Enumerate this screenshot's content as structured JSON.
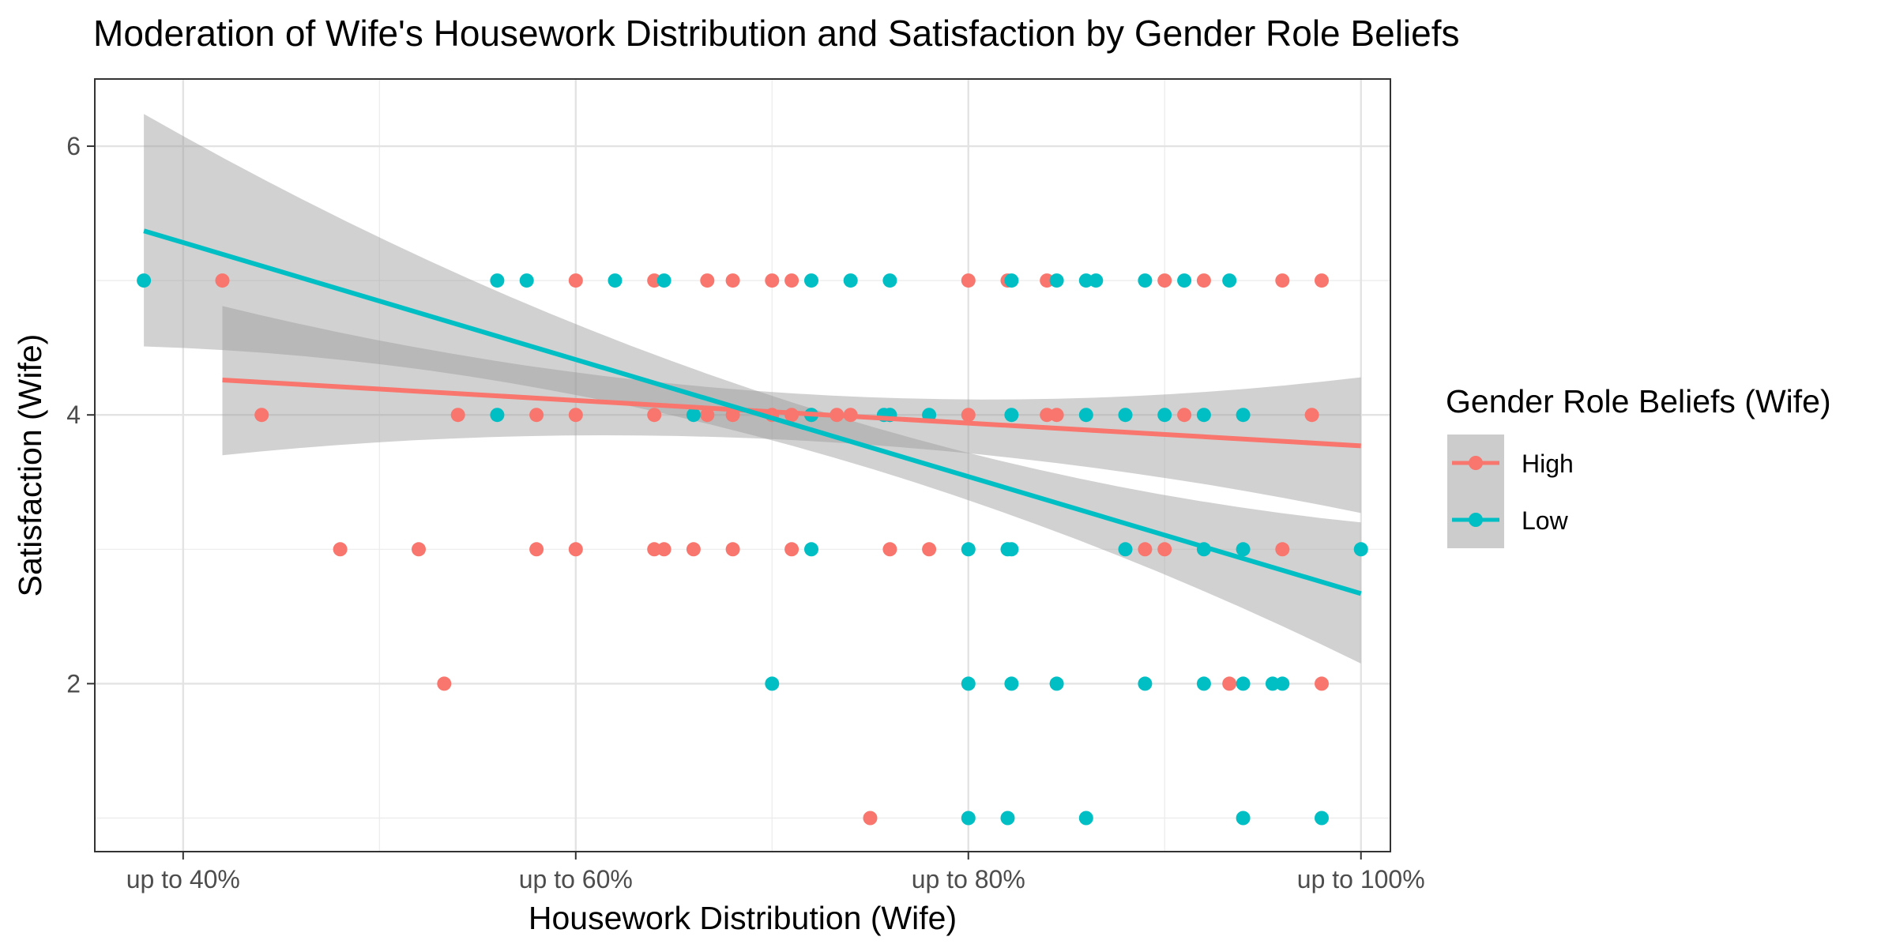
{
  "chart_data": {
    "type": "scatter",
    "title": "Moderation of Wife's Housework Distribution and Satisfaction by Gender Role Beliefs",
    "xlabel": "Housework Distribution (Wife)",
    "ylabel": "Satisfaction (Wife)",
    "xlim": [
      0.355,
      1.015
    ],
    "ylim": [
      0.75,
      6.5
    ],
    "x_ticks": [
      {
        "value": 0.4,
        "label": "up to 40%"
      },
      {
        "value": 0.6,
        "label": "up to 60%"
      },
      {
        "value": 0.8,
        "label": "up to 80%"
      },
      {
        "value": 1.0,
        "label": "up to 100%"
      }
    ],
    "y_ticks": [
      {
        "value": 2,
        "label": "2"
      },
      {
        "value": 4,
        "label": "4"
      },
      {
        "value": 6,
        "label": "6"
      }
    ],
    "grid": true,
    "legend": {
      "title": "Gender Role Beliefs (Wife)",
      "position": "right"
    },
    "series": [
      {
        "name": "High",
        "color": "#F8766D",
        "points": [
          [
            0.42,
            5
          ],
          [
            0.6,
            5
          ],
          [
            0.64,
            5
          ],
          [
            0.667,
            5
          ],
          [
            0.68,
            5
          ],
          [
            0.7,
            5
          ],
          [
            0.71,
            5
          ],
          [
            0.8,
            5
          ],
          [
            0.82,
            5
          ],
          [
            0.84,
            5
          ],
          [
            0.9,
            5
          ],
          [
            0.92,
            5
          ],
          [
            0.96,
            5
          ],
          [
            0.98,
            5
          ],
          [
            0.44,
            4
          ],
          [
            0.54,
            4
          ],
          [
            0.58,
            4
          ],
          [
            0.6,
            4
          ],
          [
            0.64,
            4
          ],
          [
            0.667,
            4
          ],
          [
            0.68,
            4
          ],
          [
            0.7,
            4
          ],
          [
            0.71,
            4
          ],
          [
            0.72,
            4
          ],
          [
            0.733,
            4
          ],
          [
            0.74,
            4
          ],
          [
            0.76,
            4
          ],
          [
            0.8,
            4
          ],
          [
            0.84,
            4
          ],
          [
            0.845,
            4
          ],
          [
            0.91,
            4
          ],
          [
            0.975,
            4
          ],
          [
            0.48,
            3
          ],
          [
            0.52,
            3
          ],
          [
            0.58,
            3
          ],
          [
            0.6,
            3
          ],
          [
            0.64,
            3
          ],
          [
            0.645,
            3
          ],
          [
            0.66,
            3
          ],
          [
            0.68,
            3
          ],
          [
            0.71,
            3
          ],
          [
            0.76,
            3
          ],
          [
            0.78,
            3
          ],
          [
            0.89,
            3
          ],
          [
            0.9,
            3
          ],
          [
            0.96,
            3
          ],
          [
            0.533,
            2
          ],
          [
            0.933,
            2
          ],
          [
            0.98,
            2
          ],
          [
            0.75,
            1
          ]
        ],
        "fit": {
          "x": [
            0.42,
            1.0
          ],
          "y": [
            4.26,
            3.77
          ],
          "ci_low": [
            3.7,
            3.27
          ],
          "ci_high": [
            4.81,
            4.28
          ],
          "ci_x_mid": 0.7,
          "ci_mid": [
            3.82,
            4.17
          ]
        }
      },
      {
        "name": "Low",
        "color": "#00BFC4",
        "points": [
          [
            0.38,
            5
          ],
          [
            0.56,
            5
          ],
          [
            0.575,
            5
          ],
          [
            0.62,
            5
          ],
          [
            0.645,
            5
          ],
          [
            0.72,
            5
          ],
          [
            0.74,
            5
          ],
          [
            0.76,
            5
          ],
          [
            0.822,
            5
          ],
          [
            0.845,
            5
          ],
          [
            0.86,
            5
          ],
          [
            0.865,
            5
          ],
          [
            0.89,
            5
          ],
          [
            0.91,
            5
          ],
          [
            0.933,
            5
          ],
          [
            0.56,
            4
          ],
          [
            0.66,
            4
          ],
          [
            0.72,
            4
          ],
          [
            0.757,
            4
          ],
          [
            0.76,
            4
          ],
          [
            0.78,
            4
          ],
          [
            0.822,
            4
          ],
          [
            0.86,
            4
          ],
          [
            0.88,
            4
          ],
          [
            0.9,
            4
          ],
          [
            0.92,
            4
          ],
          [
            0.94,
            4
          ],
          [
            0.72,
            3
          ],
          [
            0.8,
            3
          ],
          [
            0.82,
            3
          ],
          [
            0.822,
            3
          ],
          [
            0.88,
            3
          ],
          [
            0.92,
            3
          ],
          [
            0.94,
            3
          ],
          [
            1.0,
            3
          ],
          [
            0.7,
            2
          ],
          [
            0.8,
            2
          ],
          [
            0.822,
            2
          ],
          [
            0.845,
            2
          ],
          [
            0.89,
            2
          ],
          [
            0.92,
            2
          ],
          [
            0.94,
            2
          ],
          [
            0.955,
            2
          ],
          [
            0.96,
            2
          ],
          [
            0.8,
            1
          ],
          [
            0.82,
            1
          ],
          [
            0.86,
            1
          ],
          [
            0.94,
            1
          ],
          [
            0.98,
            1
          ]
        ],
        "fit": {
          "x": [
            0.38,
            1.0
          ],
          "y": [
            5.37,
            2.67
          ],
          "ci_low": [
            4.51,
            2.15
          ],
          "ci_high": [
            6.24,
            3.2
          ],
          "ci_x_mid": 0.69,
          "ci_mid": [
            3.85,
            4.19
          ]
        }
      }
    ]
  }
}
